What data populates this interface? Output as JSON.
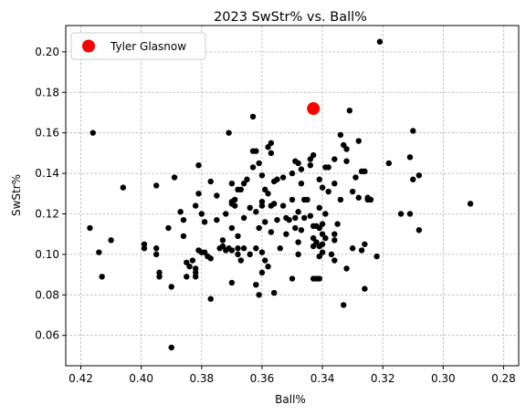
{
  "chart_data": {
    "type": "scatter",
    "title": "2023 SwStr% vs. Ball%",
    "xlabel": "Ball%",
    "ylabel": "SwStr%",
    "x_reversed": true,
    "xlim": [
      0.425,
      0.275
    ],
    "ylim": [
      0.045,
      0.213
    ],
    "xticks": [
      0.42,
      0.4,
      0.38,
      0.36,
      0.34,
      0.32,
      0.3,
      0.28
    ],
    "xtick_labels": [
      "0.42",
      "0.40",
      "0.38",
      "0.36",
      "0.34",
      "0.32",
      "0.30",
      "0.28"
    ],
    "yticks": [
      0.06,
      0.08,
      0.1,
      0.12,
      0.14,
      0.16,
      0.18,
      0.2
    ],
    "ytick_labels": [
      "0.06",
      "0.08",
      "0.10",
      "0.12",
      "0.14",
      "0.16",
      "0.18",
      "0.20"
    ],
    "grid": true,
    "legend_position": "top-left",
    "colors": {
      "others": "#000000",
      "highlight": "#ff0000",
      "grid": "#b0b0b0"
    },
    "highlight": {
      "name": "Tyler Glasnow",
      "x": 0.343,
      "y": 0.172
    },
    "points": [
      [
        0.417,
        0.113
      ],
      [
        0.416,
        0.16
      ],
      [
        0.414,
        0.101
      ],
      [
        0.413,
        0.089
      ],
      [
        0.41,
        0.107
      ],
      [
        0.406,
        0.133
      ],
      [
        0.399,
        0.105
      ],
      [
        0.399,
        0.103
      ],
      [
        0.395,
        0.134
      ],
      [
        0.395,
        0.103
      ],
      [
        0.395,
        0.1
      ],
      [
        0.394,
        0.091
      ],
      [
        0.394,
        0.089
      ],
      [
        0.391,
        0.113
      ],
      [
        0.39,
        0.084
      ],
      [
        0.389,
        0.138
      ],
      [
        0.39,
        0.054
      ],
      [
        0.387,
        0.121
      ],
      [
        0.386,
        0.117
      ],
      [
        0.386,
        0.109
      ],
      [
        0.385,
        0.096
      ],
      [
        0.385,
        0.089
      ],
      [
        0.384,
        0.094
      ],
      [
        0.383,
        0.097
      ],
      [
        0.382,
        0.124
      ],
      [
        0.382,
        0.091
      ],
      [
        0.382,
        0.093
      ],
      [
        0.382,
        0.089
      ],
      [
        0.381,
        0.13
      ],
      [
        0.381,
        0.144
      ],
      [
        0.381,
        0.102
      ],
      [
        0.38,
        0.101
      ],
      [
        0.38,
        0.12
      ],
      [
        0.379,
        0.101
      ],
      [
        0.379,
        0.116
      ],
      [
        0.378,
        0.099
      ],
      [
        0.377,
        0.136
      ],
      [
        0.377,
        0.098
      ],
      [
        0.377,
        0.078
      ],
      [
        0.375,
        0.129
      ],
      [
        0.375,
        0.117
      ],
      [
        0.374,
        0.103
      ],
      [
        0.373,
        0.104
      ],
      [
        0.373,
        0.107
      ],
      [
        0.372,
        0.12
      ],
      [
        0.372,
        0.102
      ],
      [
        0.371,
        0.16
      ],
      [
        0.371,
        0.103
      ],
      [
        0.37,
        0.135
      ],
      [
        0.37,
        0.126
      ],
      [
        0.37,
        0.125
      ],
      [
        0.37,
        0.113
      ],
      [
        0.37,
        0.102
      ],
      [
        0.37,
        0.086
      ],
      [
        0.369,
        0.127
      ],
      [
        0.369,
        0.124
      ],
      [
        0.368,
        0.132
      ],
      [
        0.368,
        0.103
      ],
      [
        0.368,
        0.1
      ],
      [
        0.368,
        0.109
      ],
      [
        0.367,
        0.132
      ],
      [
        0.367,
        0.097
      ],
      [
        0.366,
        0.135
      ],
      [
        0.366,
        0.118
      ],
      [
        0.366,
        0.103
      ],
      [
        0.365,
        0.137
      ],
      [
        0.364,
        0.123
      ],
      [
        0.364,
        0.1
      ],
      [
        0.363,
        0.168
      ],
      [
        0.363,
        0.151
      ],
      [
        0.363,
        0.143
      ],
      [
        0.362,
        0.151
      ],
      [
        0.362,
        0.121
      ],
      [
        0.362,
        0.103
      ],
      [
        0.362,
        0.085
      ],
      [
        0.361,
        0.145
      ],
      [
        0.361,
        0.113
      ],
      [
        0.361,
        0.08
      ],
      [
        0.36,
        0.139
      ],
      [
        0.36,
        0.126
      ],
      [
        0.36,
        0.124
      ],
      [
        0.36,
        0.101
      ],
      [
        0.36,
        0.091
      ],
      [
        0.359,
        0.132
      ],
      [
        0.359,
        0.116
      ],
      [
        0.359,
        0.097
      ],
      [
        0.358,
        0.153
      ],
      [
        0.358,
        0.13
      ],
      [
        0.358,
        0.094
      ],
      [
        0.357,
        0.155
      ],
      [
        0.357,
        0.15
      ],
      [
        0.357,
        0.124
      ],
      [
        0.357,
        0.111
      ],
      [
        0.356,
        0.081
      ],
      [
        0.356,
        0.136
      ],
      [
        0.356,
        0.125
      ],
      [
        0.355,
        0.137
      ],
      [
        0.355,
        0.117
      ],
      [
        0.354,
        0.103
      ],
      [
        0.353,
        0.138
      ],
      [
        0.353,
        0.124
      ],
      [
        0.352,
        0.118
      ],
      [
        0.352,
        0.11
      ],
      [
        0.351,
        0.117
      ],
      [
        0.35,
        0.14
      ],
      [
        0.35,
        0.127
      ],
      [
        0.35,
        0.088
      ],
      [
        0.349,
        0.146
      ],
      [
        0.349,
        0.118
      ],
      [
        0.349,
        0.113
      ],
      [
        0.348,
        0.145
      ],
      [
        0.348,
        0.121
      ],
      [
        0.348,
        0.106
      ],
      [
        0.348,
        0.1
      ],
      [
        0.347,
        0.142
      ],
      [
        0.347,
        0.112
      ],
      [
        0.347,
        0.135
      ],
      [
        0.346,
        0.127
      ],
      [
        0.346,
        0.118
      ],
      [
        0.345,
        0.127
      ],
      [
        0.344,
        0.144
      ],
      [
        0.344,
        0.147
      ],
      [
        0.344,
        0.119
      ],
      [
        0.343,
        0.149
      ],
      [
        0.343,
        0.114
      ],
      [
        0.343,
        0.108
      ],
      [
        0.343,
        0.104
      ],
      [
        0.343,
        0.088
      ],
      [
        0.342,
        0.114
      ],
      [
        0.342,
        0.106
      ],
      [
        0.342,
        0.088
      ],
      [
        0.341,
        0.137
      ],
      [
        0.341,
        0.123
      ],
      [
        0.341,
        0.113
      ],
      [
        0.341,
        0.104
      ],
      [
        0.341,
        0.099
      ],
      [
        0.341,
        0.088
      ],
      [
        0.34,
        0.133
      ],
      [
        0.34,
        0.115
      ],
      [
        0.34,
        0.11
      ],
      [
        0.34,
        0.105
      ],
      [
        0.34,
        0.101
      ],
      [
        0.339,
        0.143
      ],
      [
        0.339,
        0.12
      ],
      [
        0.339,
        0.108
      ],
      [
        0.338,
        0.143
      ],
      [
        0.338,
        0.131
      ],
      [
        0.337,
        0.1
      ],
      [
        0.336,
        0.135
      ],
      [
        0.336,
        0.147
      ],
      [
        0.336,
        0.11
      ],
      [
        0.336,
        0.107
      ],
      [
        0.336,
        0.097
      ],
      [
        0.335,
        0.115
      ],
      [
        0.334,
        0.159
      ],
      [
        0.334,
        0.127
      ],
      [
        0.333,
        0.154
      ],
      [
        0.333,
        0.075
      ],
      [
        0.332,
        0.152
      ],
      [
        0.332,
        0.146
      ],
      [
        0.332,
        0.093
      ],
      [
        0.331,
        0.171
      ],
      [
        0.33,
        0.131
      ],
      [
        0.33,
        0.103
      ],
      [
        0.329,
        0.138
      ],
      [
        0.328,
        0.156
      ],
      [
        0.328,
        0.128
      ],
      [
        0.327,
        0.141
      ],
      [
        0.327,
        0.102
      ],
      [
        0.326,
        0.141
      ],
      [
        0.326,
        0.105
      ],
      [
        0.326,
        0.083
      ],
      [
        0.325,
        0.128
      ],
      [
        0.325,
        0.127
      ],
      [
        0.324,
        0.127
      ],
      [
        0.322,
        0.099
      ],
      [
        0.321,
        0.205
      ],
      [
        0.318,
        0.145
      ],
      [
        0.314,
        0.12
      ],
      [
        0.311,
        0.148
      ],
      [
        0.311,
        0.12
      ],
      [
        0.31,
        0.137
      ],
      [
        0.31,
        0.161
      ],
      [
        0.308,
        0.139
      ],
      [
        0.308,
        0.112
      ],
      [
        0.291,
        0.125
      ]
    ]
  }
}
